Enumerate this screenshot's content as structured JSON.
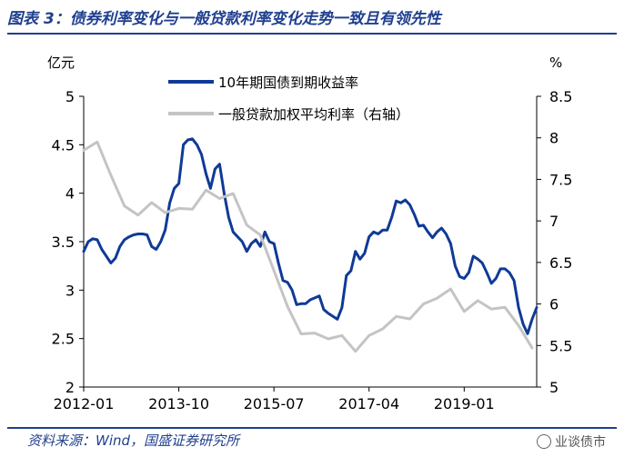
{
  "figure": {
    "title": "图表 3：债券利率变化与一般贷款利率变化走势一致且有领先性",
    "source": "资料来源：Wind，国盛证券研究所",
    "watermark": "业谈债市"
  },
  "chart_data": {
    "type": "line",
    "left_axis_unit": "亿元",
    "right_axis_unit": "%",
    "left_ylim": [
      2,
      5
    ],
    "left_ticks": [
      "2",
      "2.5",
      "3",
      "3.5",
      "4",
      "4.5",
      "5"
    ],
    "right_ylim": [
      5,
      8.5
    ],
    "right_ticks": [
      "5",
      "5.5",
      "6",
      "6.5",
      "7",
      "7.5",
      "8",
      "8.5"
    ],
    "x_ticks": [
      "2012-01",
      "2013-10",
      "2015-07",
      "2017-04",
      "2019-01"
    ],
    "x_tick_index": [
      0,
      21,
      42,
      63,
      84
    ],
    "x_range": [
      0,
      100
    ],
    "grid": false,
    "legend_position": "top",
    "colors": {
      "bond": "#0f3a96",
      "loan": "#c4c4c4",
      "axis": "#000000"
    },
    "series": [
      {
        "name": "10年期国债到期收益率",
        "axis": "left",
        "x": [
          0,
          1,
          2,
          3,
          4,
          5,
          6,
          7,
          8,
          9,
          10,
          11,
          12,
          13,
          14,
          15,
          16,
          17,
          18,
          19,
          20,
          21,
          22,
          23,
          24,
          25,
          26,
          27,
          28,
          29,
          30,
          31,
          32,
          33,
          34,
          35,
          36,
          37,
          38,
          39,
          40,
          41,
          42,
          43,
          44,
          45,
          46,
          47,
          48,
          49,
          50,
          51,
          52,
          53,
          54,
          55,
          56,
          57,
          58,
          59,
          60,
          61,
          62,
          63,
          64,
          65,
          66,
          67,
          68,
          69,
          70,
          71,
          72,
          73,
          74,
          75,
          76,
          77,
          78,
          79,
          80,
          81,
          82,
          83,
          84,
          85,
          86,
          87,
          88,
          89,
          90,
          91,
          92,
          93,
          94,
          95,
          96,
          97,
          98,
          99,
          100
        ],
        "values": [
          3.4,
          3.5,
          3.53,
          3.52,
          3.42,
          3.35,
          3.28,
          3.33,
          3.45,
          3.52,
          3.55,
          3.57,
          3.58,
          3.58,
          3.57,
          3.45,
          3.42,
          3.5,
          3.62,
          3.9,
          4.05,
          4.1,
          4.5,
          4.55,
          4.56,
          4.5,
          4.4,
          4.2,
          4.05,
          4.25,
          4.3,
          4.0,
          3.75,
          3.6,
          3.55,
          3.5,
          3.4,
          3.48,
          3.52,
          3.45,
          3.6,
          3.5,
          3.48,
          3.28,
          3.1,
          3.08,
          3.0,
          2.85,
          2.86,
          2.86,
          2.9,
          2.92,
          2.94,
          2.8,
          2.76,
          2.73,
          2.7,
          2.82,
          3.15,
          3.2,
          3.4,
          3.32,
          3.38,
          3.55,
          3.6,
          3.58,
          3.62,
          3.62,
          3.75,
          3.92,
          3.9,
          3.93,
          3.88,
          3.78,
          3.66,
          3.67,
          3.6,
          3.54,
          3.6,
          3.64,
          3.58,
          3.48,
          3.25,
          3.14,
          3.12,
          3.18,
          3.35,
          3.32,
          3.28,
          3.18,
          3.07,
          3.12,
          3.22,
          3.22,
          3.18,
          3.1,
          2.82,
          2.65,
          2.55,
          2.7,
          2.82
        ]
      },
      {
        "name": "一般贷款加权平均利率（右轴）",
        "axis": "right",
        "x": [
          0,
          3,
          6,
          9,
          12,
          15,
          18,
          21,
          24,
          27,
          30,
          33,
          36,
          39,
          42,
          45,
          48,
          51,
          54,
          57,
          60,
          63,
          66,
          69,
          72,
          75,
          78,
          81,
          84,
          87,
          90,
          93,
          96,
          99
        ],
        "values": [
          7.85,
          7.95,
          7.55,
          7.18,
          7.07,
          7.22,
          7.1,
          7.15,
          7.14,
          7.37,
          7.27,
          7.33,
          6.95,
          6.83,
          6.4,
          5.97,
          5.64,
          5.65,
          5.58,
          5.62,
          5.43,
          5.62,
          5.7,
          5.85,
          5.82,
          6.0,
          6.07,
          6.18,
          5.91,
          6.04,
          5.94,
          5.96,
          5.74,
          5.47
        ]
      }
    ]
  }
}
